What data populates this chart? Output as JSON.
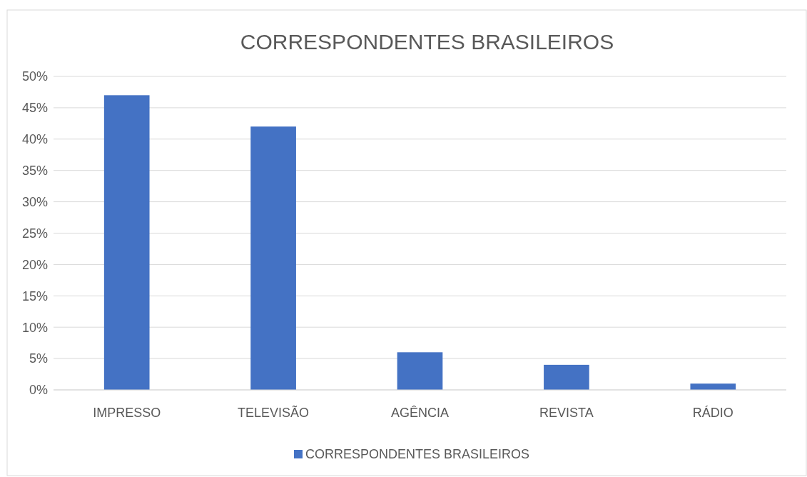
{
  "chart_data": {
    "type": "bar",
    "title": "CORRESPONDENTES BRASILEIROS",
    "categories": [
      "IMPRESSO",
      "TELEVISÃO",
      "AGÊNCIA",
      "REVISTA",
      "RÁDIO"
    ],
    "series": [
      {
        "name": "CORRESPONDENTES BRASILEIROS",
        "color": "#4472c4",
        "values": [
          47,
          42,
          6,
          4,
          1
        ]
      }
    ],
    "ylim": [
      0,
      50
    ],
    "yticks": [
      {
        "value": 0,
        "label": "0%"
      },
      {
        "value": 5,
        "label": "5%"
      },
      {
        "value": 10,
        "label": "10%"
      },
      {
        "value": 15,
        "label": "15%"
      },
      {
        "value": 20,
        "label": "20%"
      },
      {
        "value": 25,
        "label": "25%"
      },
      {
        "value": 30,
        "label": "30%"
      },
      {
        "value": 35,
        "label": "35%"
      },
      {
        "value": 40,
        "label": "40%"
      },
      {
        "value": 45,
        "label": "45%"
      },
      {
        "value": 50,
        "label": "50%"
      }
    ],
    "grid": "y",
    "legend": "bottom"
  }
}
